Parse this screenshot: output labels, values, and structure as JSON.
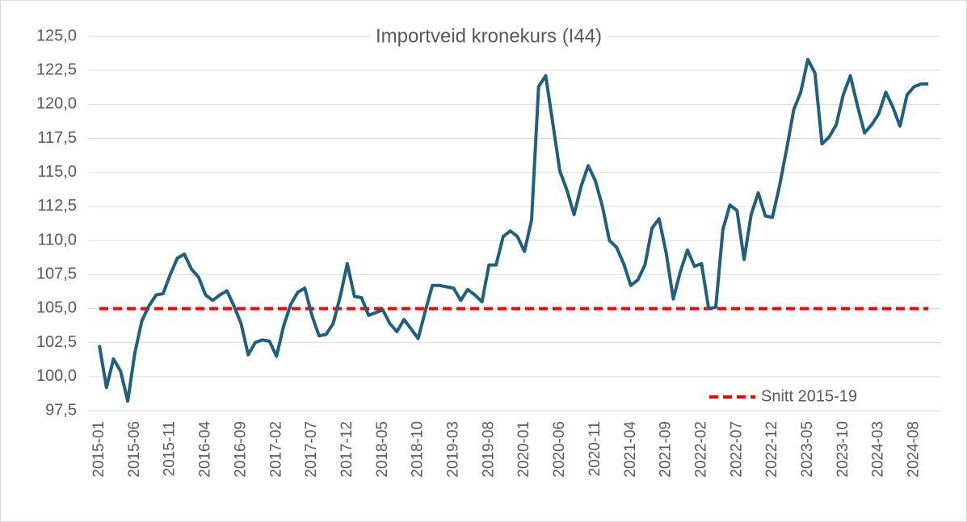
{
  "chart_data": {
    "type": "line",
    "title": "Importveid kronekurs (I44)",
    "categories": [
      "2015-01",
      null,
      null,
      null,
      null,
      "2015-06",
      null,
      null,
      null,
      null,
      "2015-11",
      null,
      null,
      null,
      null,
      "2016-04",
      null,
      null,
      null,
      null,
      "2016-09",
      null,
      null,
      null,
      null,
      "2017-02",
      null,
      null,
      null,
      null,
      "2017-07",
      null,
      null,
      null,
      null,
      "2017-12",
      null,
      null,
      null,
      null,
      "2018-05",
      null,
      null,
      null,
      null,
      "2018-10",
      null,
      null,
      null,
      null,
      "2019-03",
      null,
      null,
      null,
      null,
      "2019-08",
      null,
      null,
      null,
      null,
      "2020-01",
      null,
      null,
      null,
      null,
      "2020-06",
      null,
      null,
      null,
      null,
      "2020-11",
      null,
      null,
      null,
      null,
      "2021-04",
      null,
      null,
      null,
      null,
      "2021-09",
      null,
      null,
      null,
      null,
      "2022-02",
      null,
      null,
      null,
      null,
      "2022-07",
      null,
      null,
      null,
      null,
      "2022-12",
      null,
      null,
      null,
      null,
      "2023-05",
      null,
      null,
      null,
      null,
      "2023-10",
      null,
      null,
      null,
      null,
      "2024-03",
      null,
      null,
      null,
      null,
      "2024-08",
      null,
      null
    ],
    "series": [
      {
        "color": "#1f5f7f",
        "values": [
          102.3,
          99.2,
          101.3,
          100.4,
          98.2,
          101.7,
          104.1,
          105.2,
          106.0,
          106.1,
          107.5,
          108.7,
          109.0,
          107.9,
          107.3,
          106.0,
          105.6,
          106.0,
          106.3,
          105.2,
          103.9,
          101.6,
          102.5,
          102.7,
          102.6,
          101.5,
          103.7,
          105.3,
          106.2,
          106.5,
          104.5,
          103.0,
          103.1,
          103.9,
          105.9,
          108.3,
          105.9,
          105.8,
          104.5,
          104.7,
          104.9,
          103.9,
          103.3,
          104.2,
          103.5,
          102.8,
          104.8,
          106.7,
          106.7,
          106.6,
          106.5,
          105.6,
          106.4,
          106.0,
          105.5,
          108.2,
          108.2,
          110.3,
          110.7,
          110.3,
          109.2,
          111.5,
          121.3,
          122.1,
          118.6,
          115.1,
          113.7,
          111.9,
          114.0,
          115.5,
          114.4,
          112.5,
          110.0,
          109.5,
          108.3,
          106.7,
          107.1,
          108.2,
          110.9,
          111.6,
          109.1,
          105.7,
          107.7,
          109.3,
          108.1,
          108.3,
          105.0,
          105.1,
          110.8,
          112.6,
          112.2,
          108.6,
          111.9,
          113.5,
          111.8,
          111.7,
          114.0,
          116.7,
          119.6,
          120.9,
          123.3,
          122.3,
          117.1,
          117.6,
          118.5,
          120.7,
          122.1,
          119.9,
          117.9,
          118.5,
          119.3,
          120.9,
          119.8,
          118.4,
          120.7,
          121.3,
          121.5,
          121.5
        ]
      }
    ],
    "reference": {
      "name": "Snitt 2015-19",
      "value": 105.0,
      "color": "#ff0000"
    },
    "ylim": [
      97.5,
      125
    ],
    "yticks": [
      {
        "value": 97.5,
        "label": "97,5"
      },
      {
        "value": 100,
        "label": "100,0"
      },
      {
        "value": 102.5,
        "label": "102,5"
      },
      {
        "value": 105,
        "label": "105,0"
      },
      {
        "value": 107.5,
        "label": "107,5"
      },
      {
        "value": 110,
        "label": "110,0"
      },
      {
        "value": 112.5,
        "label": "112,5"
      },
      {
        "value": 115,
        "label": "115,0"
      },
      {
        "value": 117.5,
        "label": "117,5"
      },
      {
        "value": 120,
        "label": "120,0"
      },
      {
        "value": 122.5,
        "label": "122,5"
      },
      {
        "value": 125,
        "label": "125,0"
      }
    ],
    "grid": true,
    "legend": "lower right"
  }
}
